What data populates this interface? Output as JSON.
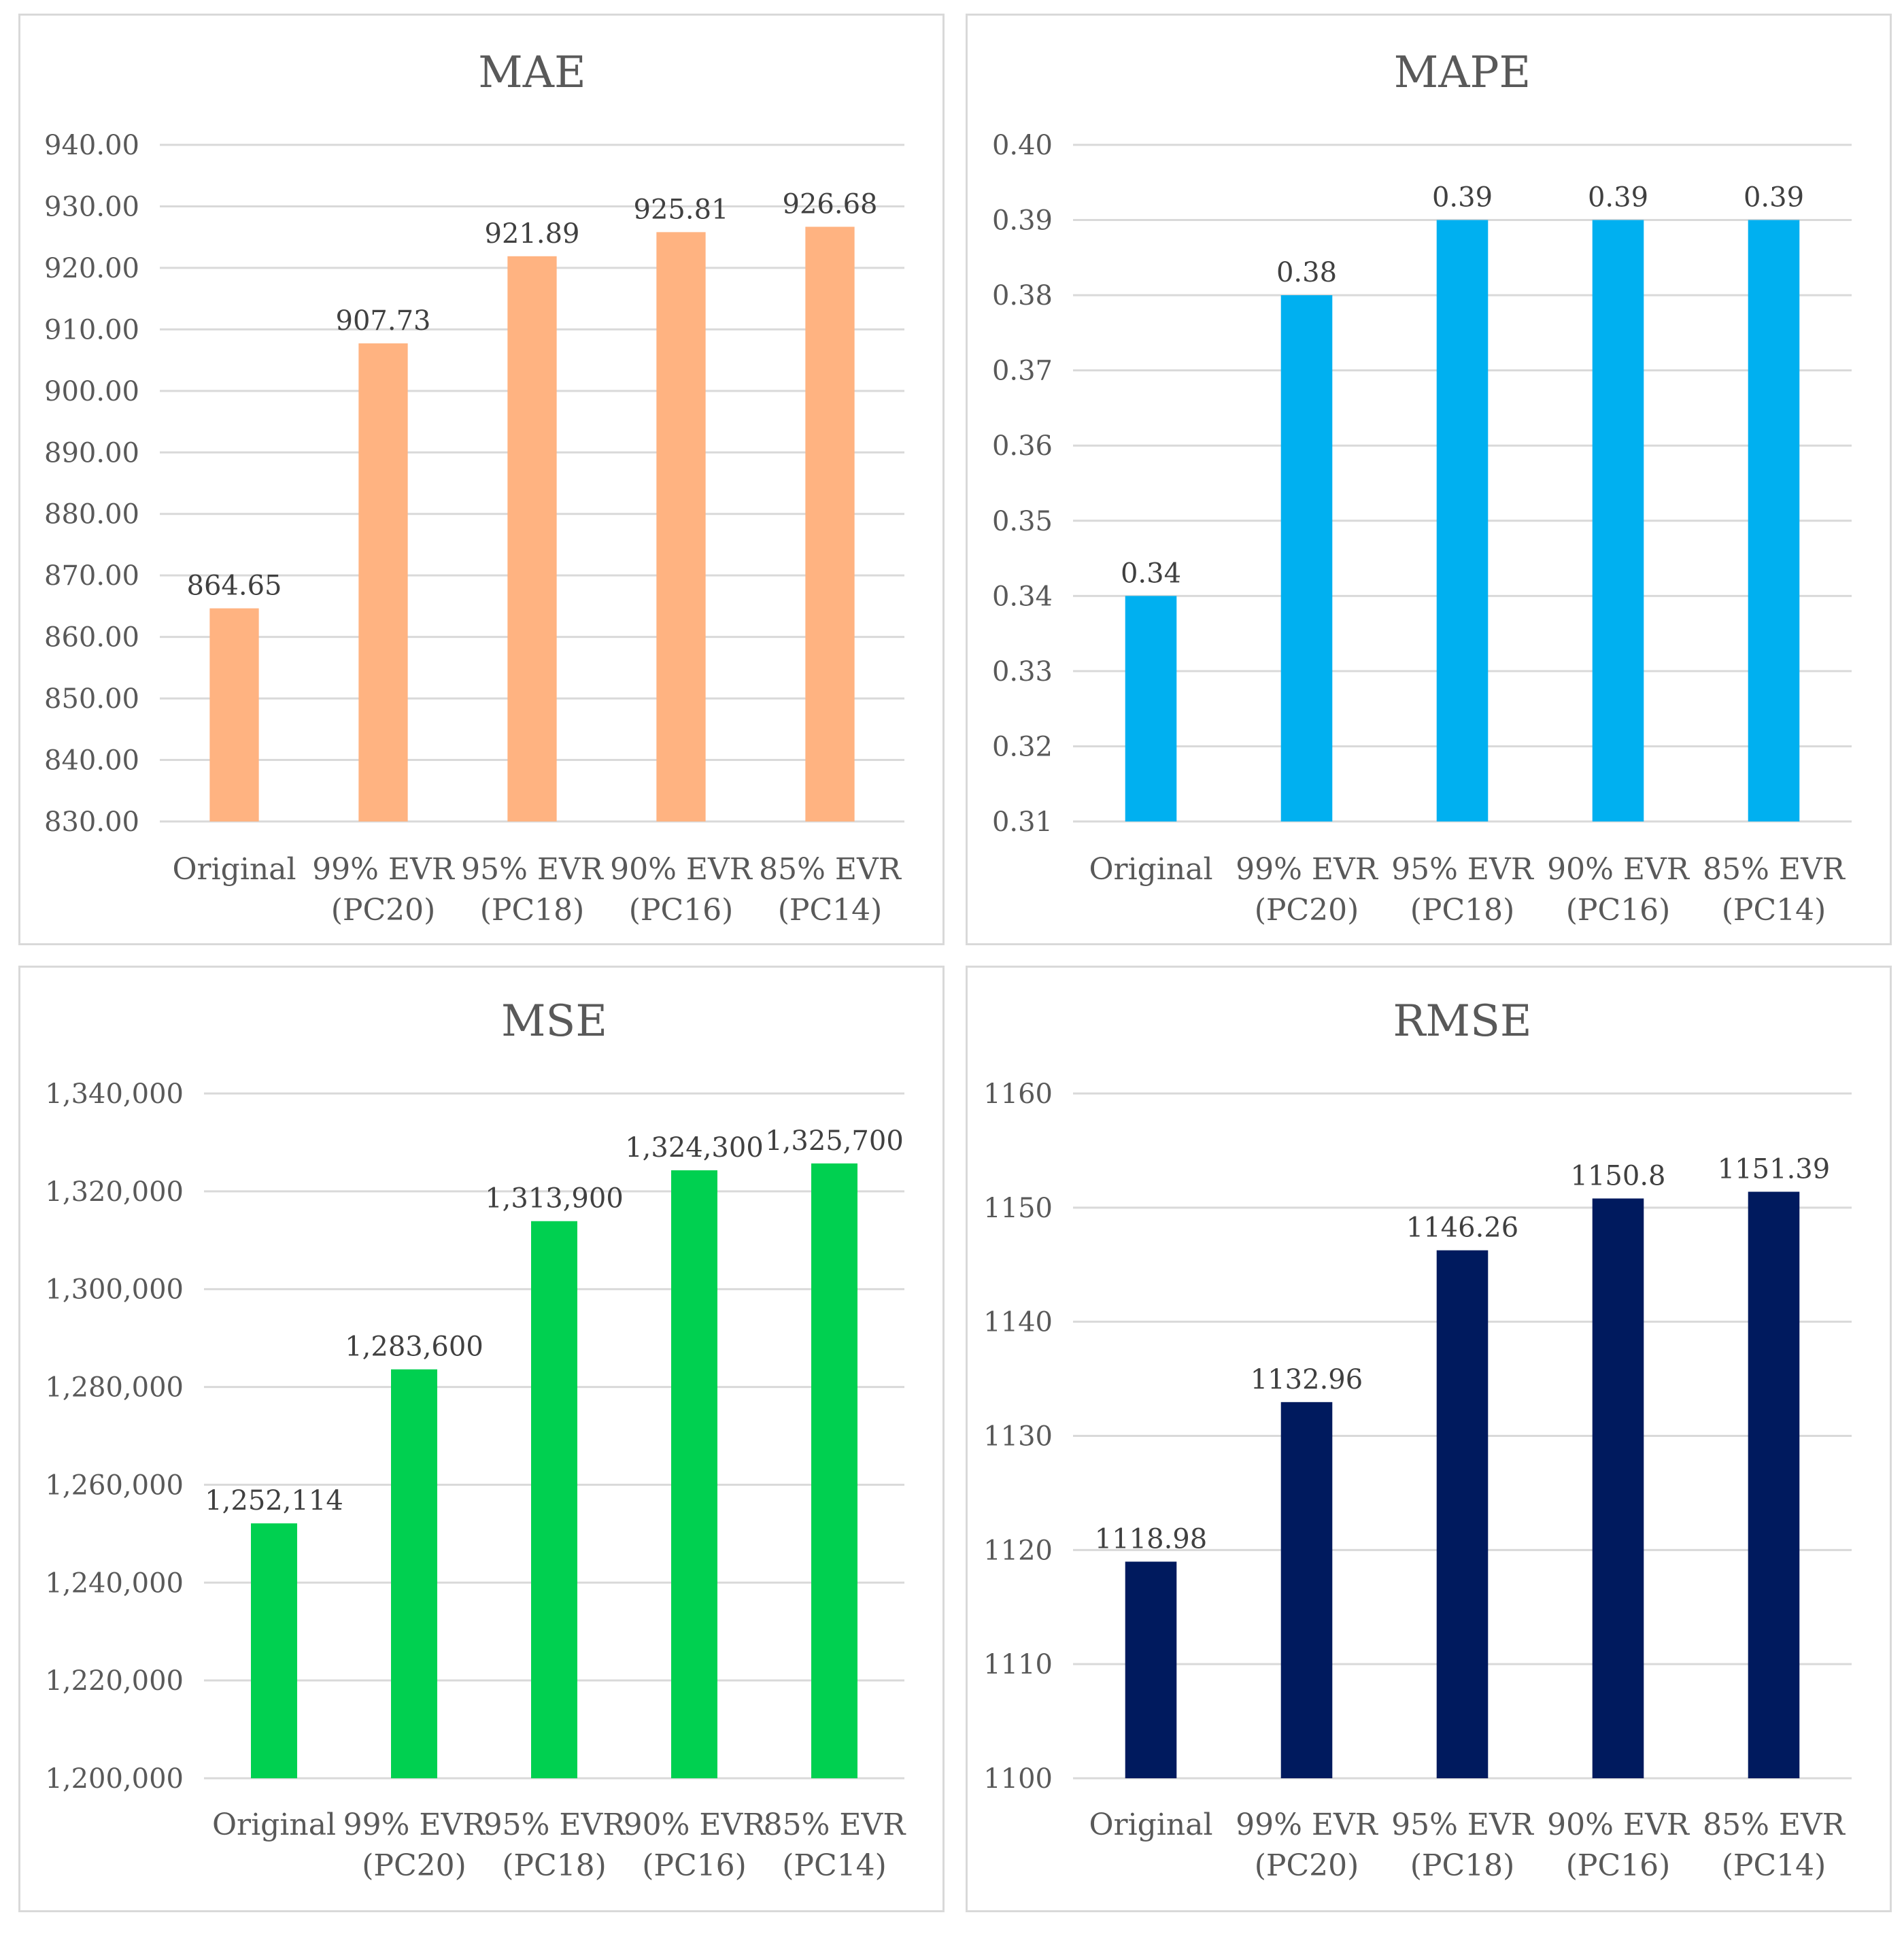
{
  "chart_data": [
    {
      "type": "bar",
      "title": "MAE",
      "categories": [
        [
          "Original"
        ],
        [
          "99% EVR",
          "(PC20)"
        ],
        [
          "95% EVR",
          "(PC18)"
        ],
        [
          "90% EVR",
          "(PC16)"
        ],
        [
          "85% EVR",
          "(PC14)"
        ]
      ],
      "values": [
        864.65,
        907.73,
        921.89,
        925.81,
        926.68
      ],
      "value_labels": [
        "864.65",
        "907.73",
        "921.89",
        "925.81",
        "926.68"
      ],
      "ylim": [
        830,
        940
      ],
      "yticks": [
        830,
        840,
        850,
        860,
        870,
        880,
        890,
        900,
        910,
        920,
        930,
        940
      ],
      "ytick_labels": [
        "830.00",
        "840.00",
        "850.00",
        "860.00",
        "870.00",
        "880.00",
        "890.00",
        "900.00",
        "910.00",
        "920.00",
        "930.00",
        "940.00"
      ],
      "color": "#FFB381",
      "xlabel": "",
      "ylabel": ""
    },
    {
      "type": "bar",
      "title": "MAPE",
      "categories": [
        [
          "Original"
        ],
        [
          "99% EVR",
          "(PC20)"
        ],
        [
          "95% EVR",
          "(PC18)"
        ],
        [
          "90% EVR",
          "(PC16)"
        ],
        [
          "85% EVR",
          "(PC14)"
        ]
      ],
      "values": [
        0.34,
        0.38,
        0.39,
        0.39,
        0.39
      ],
      "value_labels": [
        "0.34",
        "0.38",
        "0.39",
        "0.39",
        "0.39"
      ],
      "ylim": [
        0.31,
        0.4
      ],
      "yticks": [
        0.31,
        0.32,
        0.33,
        0.34,
        0.35,
        0.36,
        0.37,
        0.38,
        0.39,
        0.4
      ],
      "ytick_labels": [
        "0.31",
        "0.32",
        "0.33",
        "0.34",
        "0.35",
        "0.36",
        "0.37",
        "0.38",
        "0.39",
        "0.40"
      ],
      "color": "#00B0F0",
      "xlabel": "",
      "ylabel": ""
    },
    {
      "type": "bar",
      "title": "MSE",
      "categories": [
        [
          "Original"
        ],
        [
          "99% EVR",
          "(PC20)"
        ],
        [
          "95% EVR",
          "(PC18)"
        ],
        [
          "90% EVR",
          "(PC16)"
        ],
        [
          "85% EVR",
          "(PC14)"
        ]
      ],
      "values": [
        1252114,
        1283600,
        1313900,
        1324300,
        1325700
      ],
      "value_labels": [
        "1,252,114",
        "1,283,600",
        "1,313,900",
        "1,324,300",
        "1,325,700"
      ],
      "ylim": [
        1200000,
        1340000
      ],
      "yticks": [
        1200000,
        1220000,
        1240000,
        1260000,
        1280000,
        1300000,
        1320000,
        1340000
      ],
      "ytick_labels": [
        "1,200,000",
        "1,220,000",
        "1,240,000",
        "1,260,000",
        "1,280,000",
        "1,300,000",
        "1,320,000",
        "1,340,000"
      ],
      "color": "#00D050",
      "xlabel": "",
      "ylabel": ""
    },
    {
      "type": "bar",
      "title": "RMSE",
      "categories": [
        [
          "Original"
        ],
        [
          "99% EVR",
          "(PC20)"
        ],
        [
          "95% EVR",
          "(PC18)"
        ],
        [
          "90% EVR",
          "(PC16)"
        ],
        [
          "85% EVR",
          "(PC14)"
        ]
      ],
      "values": [
        1118.98,
        1132.96,
        1146.26,
        1150.8,
        1151.39
      ],
      "value_labels": [
        "1118.98",
        "1132.96",
        "1146.26",
        "1150.8",
        "1151.39"
      ],
      "ylim": [
        1100,
        1160
      ],
      "yticks": [
        1100,
        1110,
        1120,
        1130,
        1140,
        1150,
        1160
      ],
      "ytick_labels": [
        "1100",
        "1110",
        "1120",
        "1130",
        "1140",
        "1150",
        "1160"
      ],
      "color": "#001A5E",
      "xlabel": "",
      "ylabel": ""
    }
  ]
}
